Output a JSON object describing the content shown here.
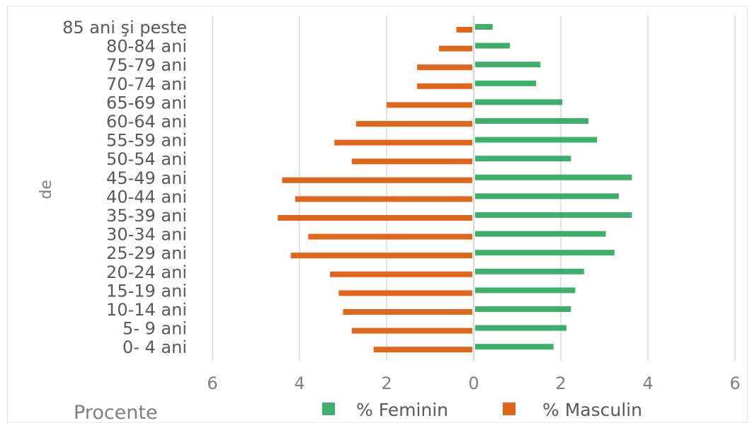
{
  "chart_data": {
    "type": "bar",
    "orientation": "horizontal",
    "title": "",
    "xlabel": "Procente",
    "ylabel": "de",
    "categories": [
      "85 ani şi peste",
      "80-84 ani",
      "75-79 ani",
      "70-74 ani",
      "65-69 ani",
      "60-64 ani",
      "55-59 ani",
      "50-54 ani",
      "45-49 ani",
      "40-44 ani",
      "35-39 ani",
      "30-34 ani",
      "25-29 ani",
      "20-24 ani",
      "15-19 ani",
      "10-14 ani",
      "5- 9 ani",
      "0- 4 ani"
    ],
    "series": [
      {
        "name": "% Feminin",
        "color": "#3fae6a",
        "values": [
          0.4,
          0.8,
          1.5,
          1.4,
          2.0,
          2.6,
          2.8,
          2.2,
          3.6,
          3.3,
          3.6,
          3.0,
          3.2,
          2.5,
          2.3,
          2.2,
          2.1,
          1.8
        ]
      },
      {
        "name": "% Masculin",
        "color": "#e0661c",
        "values": [
          0.4,
          0.8,
          1.3,
          1.3,
          2.0,
          2.7,
          3.2,
          2.8,
          4.4,
          4.1,
          4.5,
          3.8,
          4.2,
          3.3,
          3.1,
          3.0,
          2.8,
          2.3
        ]
      }
    ],
    "xlim": [
      -6,
      6
    ],
    "xticks": [
      -6,
      -4,
      -2,
      0,
      2,
      4,
      6
    ],
    "xtick_labels": [
      "6",
      "4",
      "2",
      "0",
      "2",
      "4",
      "6"
    ],
    "grid": true,
    "legend_position": "bottom"
  }
}
